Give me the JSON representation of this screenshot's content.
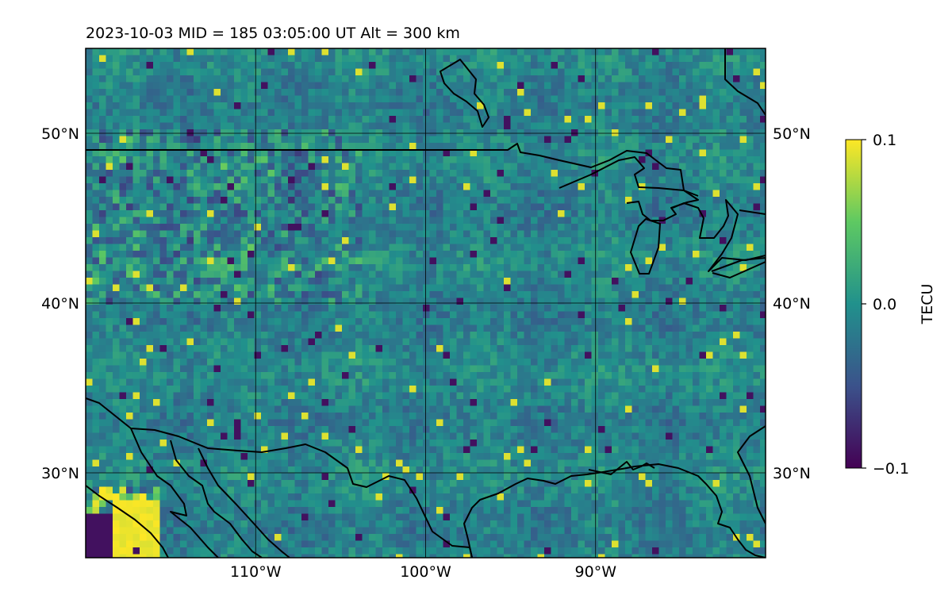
{
  "title": "2023-10-03  MID = 185    03:05:00  UT  Alt = 300 km",
  "colorbar": {
    "label": "TECU",
    "ticks": [
      "0.1",
      "0.0",
      "−0.1"
    ],
    "colormap": "viridis",
    "colors": [
      "#440154",
      "#3b528b",
      "#21918c",
      "#5ec962",
      "#fde725"
    ]
  },
  "map": {
    "lon_range": [
      -120,
      -80
    ],
    "lat_range": [
      25,
      55
    ],
    "lon_ticks": [
      {
        "value": -110,
        "label": "110°W"
      },
      {
        "value": -100,
        "label": "100°W"
      },
      {
        "value": -90,
        "label": "90°W"
      }
    ],
    "lat_ticks": [
      {
        "value": 50,
        "label": "50°N"
      },
      {
        "value": 40,
        "label": "40°N"
      },
      {
        "value": 30,
        "label": "30°N"
      }
    ]
  },
  "chart_data": {
    "type": "heatmap",
    "variable": "TECU",
    "vmin": -0.1,
    "vmax": 0.1,
    "grid": true
  }
}
